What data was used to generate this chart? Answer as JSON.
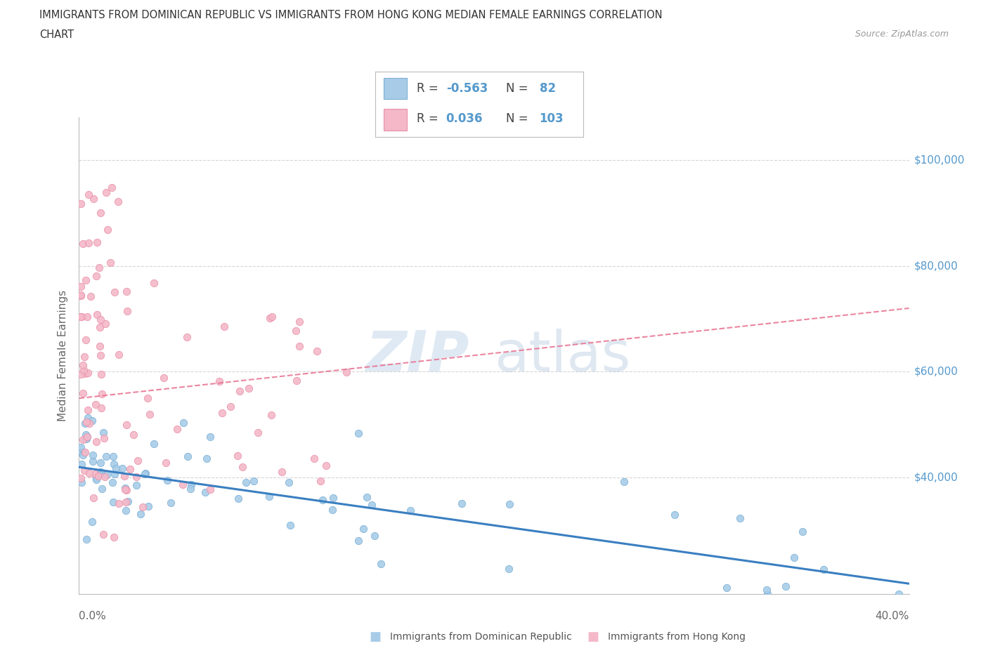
{
  "title_line1": "IMMIGRANTS FROM DOMINICAN REPUBLIC VS IMMIGRANTS FROM HONG KONG MEDIAN FEMALE EARNINGS CORRELATION",
  "title_line2": "CHART",
  "source": "Source: ZipAtlas.com",
  "ylabel": "Median Female Earnings",
  "x_min": 0.0,
  "x_max": 0.4,
  "y_min": 18000,
  "y_max": 108000,
  "y_ticks": [
    40000,
    60000,
    80000,
    100000
  ],
  "y_tick_labels": [
    "$40,000",
    "$60,000",
    "$80,000",
    "$100,000"
  ],
  "watermark_text": "ZIP",
  "watermark_text2": "atlas",
  "blue_trend": [
    0.0,
    42000,
    0.4,
    20000
  ],
  "pink_trend": [
    0.0,
    55000,
    0.4,
    72000
  ],
  "legend_blue_R": "-0.563",
  "legend_blue_N": "82",
  "legend_pink_R": "0.036",
  "legend_pink_N": "103",
  "blue_color": "#a8cce8",
  "blue_edge": "#7bafd4",
  "pink_color": "#f4b8c8",
  "pink_edge": "#e890a8",
  "blue_trend_color": "#3a7fc1",
  "pink_trend_color": "#e87090",
  "right_label_color": "#5599cc",
  "grid_color": "#cccccc",
  "title_color": "#333333",
  "source_color": "#999999",
  "xlabel_color": "#666666",
  "bottom_legend_color": "#555555"
}
